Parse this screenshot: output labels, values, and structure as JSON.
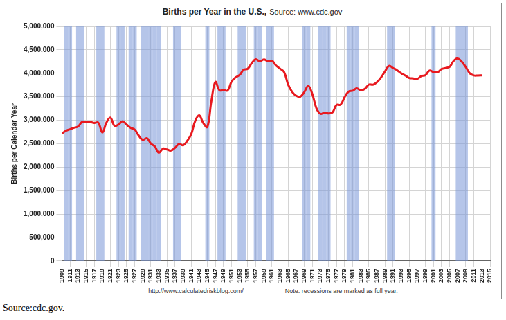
{
  "chart_data": {
    "type": "line",
    "title": "Births per Year in the U.S.,",
    "subtitle": "Source: www.cdc.gov",
    "y_label": "Births per Calendar Year",
    "annotations": [
      "http://www.calculatedriskblog.com/",
      "Note: recessions are marked as full year."
    ],
    "caption": "Source:cdc.gov.",
    "color": "#e8191f",
    "grid": true,
    "x": [
      1909,
      1910,
      1911,
      1912,
      1913,
      1914,
      1915,
      1916,
      1917,
      1918,
      1919,
      1920,
      1921,
      1922,
      1923,
      1924,
      1925,
      1926,
      1927,
      1928,
      1929,
      1930,
      1931,
      1932,
      1933,
      1934,
      1935,
      1936,
      1937,
      1938,
      1939,
      1940,
      1941,
      1942,
      1943,
      1944,
      1945,
      1946,
      1947,
      1948,
      1949,
      1950,
      1951,
      1952,
      1953,
      1954,
      1955,
      1956,
      1957,
      1958,
      1959,
      1960,
      1961,
      1962,
      1963,
      1964,
      1965,
      1966,
      1967,
      1968,
      1969,
      1970,
      1971,
      1972,
      1973,
      1974,
      1975,
      1976,
      1977,
      1978,
      1979,
      1980,
      1981,
      1982,
      1983,
      1984,
      1985,
      1986,
      1987,
      1988,
      1989,
      1990,
      1991,
      1992,
      1993,
      1994,
      1995,
      1996,
      1997,
      1998,
      1999,
      2000,
      2001,
      2002,
      2003,
      2004,
      2005,
      2006,
      2007,
      2008,
      2009,
      2010,
      2011,
      2012,
      2013
    ],
    "values": [
      2718000,
      2777000,
      2809000,
      2840000,
      2869000,
      2966000,
      2965000,
      2964000,
      2944000,
      2948000,
      2740000,
      2950000,
      3055000,
      2882000,
      2910000,
      2979000,
      2909000,
      2839000,
      2802000,
      2674000,
      2582000,
      2618000,
      2506000,
      2440000,
      2307000,
      2396000,
      2377000,
      2355000,
      2413000,
      2496000,
      2466000,
      2559000,
      2703000,
      2989000,
      3104000,
      2939000,
      2858000,
      3411000,
      3817000,
      3637000,
      3649000,
      3632000,
      3823000,
      3913000,
      3965000,
      4078000,
      4097000,
      4218000,
      4300000,
      4255000,
      4295000,
      4258000,
      4268000,
      4167000,
      4098000,
      4027000,
      3760000,
      3606000,
      3521000,
      3502000,
      3600000,
      3731000,
      3556000,
      3258000,
      3137000,
      3160000,
      3144000,
      3168000,
      3327000,
      3333000,
      3494000,
      3612000,
      3629000,
      3681000,
      3639000,
      3669000,
      3761000,
      3757000,
      3809000,
      3910000,
      4041000,
      4158000,
      4111000,
      4065000,
      4000000,
      3953000,
      3900000,
      3891000,
      3881000,
      3942000,
      3959000,
      4059000,
      4026000,
      4022000,
      4090000,
      4112000,
      4138000,
      4266000,
      4316000,
      4248000,
      4131000,
      3999000,
      3954000,
      3953000,
      3957000
    ],
    "recession_years": [
      1910,
      1911,
      1913,
      1914,
      1918,
      1919,
      1923,
      1924,
      1926,
      1927,
      1929,
      1930,
      1931,
      1932,
      1933,
      1937,
      1938,
      1945,
      1948,
      1949,
      1953,
      1954,
      1957,
      1958,
      1960,
      1961,
      1969,
      1970,
      1973,
      1974,
      1975,
      1980,
      1981,
      1982,
      1990,
      1991,
      2001,
      2007,
      2008,
      2009
    ],
    "xlim": [
      1909,
      2015
    ],
    "xticks": [
      1909,
      1911,
      1913,
      1915,
      1917,
      1919,
      1921,
      1923,
      1925,
      1927,
      1929,
      1931,
      1933,
      1935,
      1937,
      1939,
      1941,
      1943,
      1945,
      1947,
      1949,
      1951,
      1953,
      1955,
      1957,
      1959,
      1961,
      1963,
      1965,
      1967,
      1969,
      1971,
      1973,
      1975,
      1977,
      1979,
      1981,
      1983,
      1985,
      1987,
      1989,
      1991,
      1993,
      1995,
      1997,
      1999,
      2001,
      2003,
      2005,
      2007,
      2009,
      2011,
      2013,
      2015
    ],
    "ylim": [
      0,
      5000000
    ],
    "yticks": [
      0,
      {
        "value": 500000,
        "label": "500,000"
      },
      {
        "value": 1000000,
        "label": "1,000,000"
      },
      {
        "value": 1500000,
        "label": "1,500,000"
      },
      {
        "value": 2000000,
        "label": "2,000,000"
      },
      {
        "value": 2500000,
        "label": "2,500,000"
      },
      {
        "value": 3000000,
        "label": "3,000,000"
      },
      {
        "value": 3500000,
        "label": "3,500,000"
      },
      {
        "value": 4000000,
        "label": "4,000,000"
      },
      {
        "value": 4500000,
        "label": "4,500,000"
      },
      {
        "value": 5000000,
        "label": "5,000,000"
      }
    ]
  }
}
